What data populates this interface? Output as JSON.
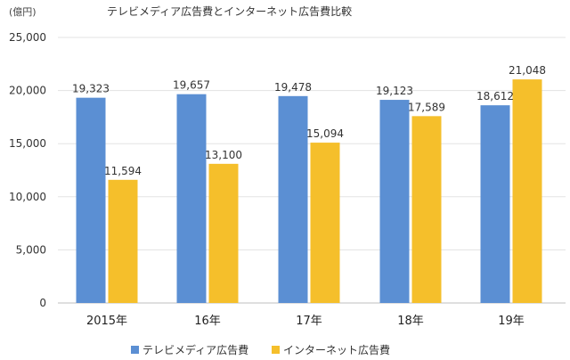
{
  "chart_data": {
    "type": "bar",
    "title": "テレビメディア広告費とインターネット広告費比較",
    "unit_label": "(億円)",
    "categories": [
      "2015年",
      "16年",
      "17年",
      "18年",
      "19年"
    ],
    "series": [
      {
        "name": "テレビメディア広告費",
        "color": "#5b8fd3",
        "values": [
          19323,
          19657,
          19478,
          19123,
          18612
        ],
        "labels": [
          "19,323",
          "19,657",
          "19,478",
          "19,123",
          "18,612"
        ]
      },
      {
        "name": "インターネット広告費",
        "color": "#f5bf2b",
        "values": [
          11594,
          13100,
          15094,
          17589,
          21048
        ],
        "labels": [
          "11,594",
          "13,100",
          "15,094",
          "17,589",
          "21,048"
        ]
      }
    ],
    "ylim": [
      0,
      25000
    ],
    "yticks": [
      0,
      5000,
      10000,
      15000,
      20000,
      25000
    ],
    "ytick_labels": [
      "0",
      "5,000",
      "10,000",
      "15,000",
      "20,000",
      "25,000"
    ],
    "grid": true,
    "legend": "bottom"
  }
}
